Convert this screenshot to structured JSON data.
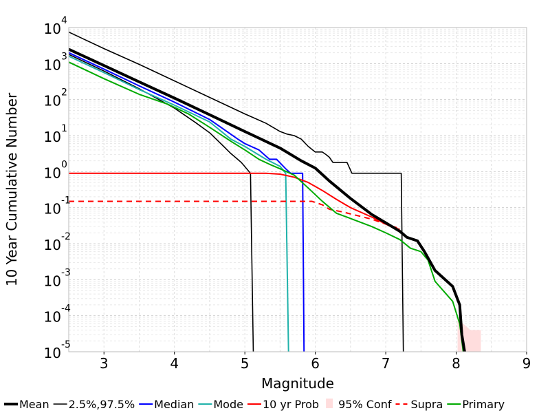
{
  "chart_data": {
    "type": "line",
    "xlabel": "Magnitude",
    "ylabel": "10 Year Cumulative Number",
    "xlim": [
      2.5,
      9
    ],
    "ylim": [
      1e-05,
      10000
    ],
    "y_scale": "log",
    "grid": true,
    "x_ticks": [
      {
        "value": 3,
        "label": "3"
      },
      {
        "value": 4,
        "label": "4"
      },
      {
        "value": 5,
        "label": "5"
      },
      {
        "value": 6,
        "label": "6"
      },
      {
        "value": 7,
        "label": "7"
      },
      {
        "value": 8,
        "label": "8"
      },
      {
        "value": 9,
        "label": "9"
      }
    ],
    "y_ticks": [
      {
        "value": 10000,
        "base": "10",
        "exp": "4"
      },
      {
        "value": 1000,
        "base": "10",
        "exp": "3"
      },
      {
        "value": 100,
        "base": "10",
        "exp": "2"
      },
      {
        "value": 10,
        "base": "10",
        "exp": "1"
      },
      {
        "value": 1,
        "base": "10",
        "exp": "0"
      },
      {
        "value": 0.1,
        "base": "10",
        "exp": "-1"
      },
      {
        "value": 0.01,
        "base": "10",
        "exp": "-2"
      },
      {
        "value": 0.001,
        "base": "10",
        "exp": "-3"
      },
      {
        "value": 0.0001,
        "base": "10",
        "exp": "-4"
      },
      {
        "value": 1e-05,
        "base": "10",
        "exp": "-5"
      }
    ],
    "legend_position": "bottom",
    "series": [
      {
        "name": "Mean",
        "color": "#000000",
        "style": "thick",
        "points": [
          [
            2.5,
            2500
          ],
          [
            3,
            880
          ],
          [
            3.5,
            310
          ],
          [
            4,
            110
          ],
          [
            4.5,
            38
          ],
          [
            5,
            13
          ],
          [
            5.5,
            4.5
          ],
          [
            5.8,
            2.0
          ],
          [
            6,
            1.25
          ],
          [
            6.2,
            0.55
          ],
          [
            6.5,
            0.18
          ],
          [
            6.8,
            0.065
          ],
          [
            7.0,
            0.038
          ],
          [
            7.2,
            0.022
          ],
          [
            7.3,
            0.015
          ],
          [
            7.45,
            0.012
          ],
          [
            7.55,
            0.006
          ],
          [
            7.7,
            0.0018
          ],
          [
            7.95,
            0.00065
          ],
          [
            8.05,
            0.0002
          ],
          [
            8.08,
            3e-05
          ],
          [
            8.12,
            1e-05
          ]
        ]
      },
      {
        "name": "2.5%,97.5%",
        "color": "#000000",
        "style": "thin",
        "points": [
          [
            2.5,
            7500
          ],
          [
            3,
            2600
          ],
          [
            3.5,
            950
          ],
          [
            4,
            330
          ],
          [
            4.5,
            115
          ],
          [
            5,
            40
          ],
          [
            5.3,
            22
          ],
          [
            5.5,
            13
          ],
          [
            5.6,
            11
          ],
          [
            5.7,
            10
          ],
          [
            5.8,
            8
          ],
          [
            5.9,
            5
          ],
          [
            6.0,
            3.5
          ],
          [
            6.1,
            3.5
          ],
          [
            6.15,
            3
          ],
          [
            6.2,
            2.5
          ],
          [
            6.25,
            1.8
          ],
          [
            6.45,
            1.8
          ],
          [
            6.52,
            0.9
          ],
          [
            7.22,
            0.9
          ],
          [
            7.25,
            1e-05
          ]
        ]
      },
      {
        "name": "2.5%,97.5%",
        "color": "#000000",
        "style": "thin",
        "points": [
          [
            2.5,
            1800
          ],
          [
            3,
            620
          ],
          [
            3.5,
            200
          ],
          [
            4,
            58
          ],
          [
            4.3,
            23
          ],
          [
            4.5,
            12
          ],
          [
            4.7,
            5
          ],
          [
            4.8,
            3.2
          ],
          [
            4.95,
            1.8
          ],
          [
            5.08,
            0.9
          ],
          [
            5.12,
            1e-05
          ]
        ]
      },
      {
        "name": "Median",
        "color": "#0000ff",
        "style": "normal",
        "points": [
          [
            2.5,
            2000
          ],
          [
            3,
            700
          ],
          [
            3.5,
            240
          ],
          [
            4,
            85
          ],
          [
            4.5,
            28
          ],
          [
            4.9,
            8
          ],
          [
            5.0,
            6
          ],
          [
            5.2,
            4
          ],
          [
            5.35,
            2.2
          ],
          [
            5.45,
            2.2
          ],
          [
            5.58,
            1.2
          ],
          [
            5.65,
            0.9
          ],
          [
            5.82,
            0.9
          ],
          [
            5.84,
            1e-05
          ]
        ]
      },
      {
        "name": "Mode",
        "color": "#20b2aa",
        "style": "normal",
        "points": [
          [
            2.5,
            1600
          ],
          [
            3,
            560
          ],
          [
            3.5,
            190
          ],
          [
            4,
            70
          ],
          [
            4.5,
            24
          ],
          [
            4.8,
            8
          ],
          [
            5.0,
            5
          ],
          [
            5.3,
            2.2
          ],
          [
            5.5,
            1.4
          ],
          [
            5.58,
            0.9
          ],
          [
            5.62,
            1e-05
          ]
        ]
      },
      {
        "name": "10 yr Prob",
        "color": "#ff0000",
        "style": "normal",
        "points": [
          [
            2.5,
            0.9
          ],
          [
            3,
            0.9
          ],
          [
            4,
            0.9
          ],
          [
            5,
            0.9
          ],
          [
            5.3,
            0.9
          ],
          [
            5.5,
            0.85
          ],
          [
            5.7,
            0.7
          ],
          [
            5.9,
            0.5
          ],
          [
            6.1,
            0.3
          ],
          [
            6.3,
            0.17
          ],
          [
            6.5,
            0.1
          ],
          [
            6.8,
            0.055
          ],
          [
            7.0,
            0.035
          ],
          [
            7.1,
            0.028
          ],
          [
            7.2,
            0.025
          ]
        ]
      },
      {
        "name": "Supra",
        "color": "#ff0000",
        "style": "dashed",
        "points": [
          [
            2.5,
            0.15
          ],
          [
            5,
            0.15
          ],
          [
            5.95,
            0.15
          ],
          [
            6.1,
            0.12
          ],
          [
            6.2,
            0.09
          ],
          [
            6.4,
            0.075
          ],
          [
            6.6,
            0.06
          ],
          [
            6.8,
            0.048
          ],
          [
            7.0,
            0.035
          ],
          [
            7.15,
            0.028
          ],
          [
            7.2,
            0.025
          ]
        ]
      },
      {
        "name": "Primary",
        "color": "#00aa00",
        "style": "normal",
        "points": [
          [
            2.5,
            1100
          ],
          [
            3,
            380
          ],
          [
            3.5,
            140
          ],
          [
            3.9,
            75
          ],
          [
            4.2,
            40
          ],
          [
            4.5,
            17
          ],
          [
            4.8,
            7
          ],
          [
            5.0,
            4
          ],
          [
            5.2,
            2.2
          ],
          [
            5.35,
            1.6
          ],
          [
            5.5,
            1.2
          ],
          [
            5.7,
            0.8
          ],
          [
            5.9,
            0.35
          ],
          [
            6.1,
            0.15
          ],
          [
            6.3,
            0.07
          ],
          [
            6.5,
            0.05
          ],
          [
            6.8,
            0.03
          ],
          [
            7.0,
            0.02
          ],
          [
            7.2,
            0.013
          ],
          [
            7.35,
            0.0075
          ],
          [
            7.5,
            0.006
          ],
          [
            7.6,
            0.0035
          ],
          [
            7.7,
            0.0009
          ],
          [
            7.95,
            0.00025
          ],
          [
            8.05,
            6e-05
          ],
          [
            8.1,
            1e-05
          ]
        ]
      }
    ],
    "confidence_band": {
      "name": "95% Conf",
      "color": "#ffdddd",
      "upper": [
        [
          8.02,
          9e-05
        ],
        [
          8.1,
          6e-05
        ],
        [
          8.2,
          4e-05
        ],
        [
          8.35,
          4e-05
        ]
      ],
      "lower": [
        [
          8.02,
          1e-05
        ],
        [
          8.35,
          1e-05
        ]
      ]
    },
    "legend": [
      {
        "label": "Mean",
        "color": "#000000",
        "style": "thick"
      },
      {
        "label": "2.5%,97.5%",
        "color": "#000000",
        "style": "thin"
      },
      {
        "label": "Median",
        "color": "#0000ff",
        "style": "normal"
      },
      {
        "label": "Mode",
        "color": "#20b2aa",
        "style": "normal"
      },
      {
        "label": "10 yr Prob",
        "color": "#ff0000",
        "style": "normal"
      },
      {
        "label": "95% Conf",
        "color": "#ffdddd",
        "style": "patch"
      },
      {
        "label": "Supra",
        "color": "#ff0000",
        "style": "dashed"
      },
      {
        "label": "Primary",
        "color": "#00aa00",
        "style": "normal"
      }
    ]
  }
}
